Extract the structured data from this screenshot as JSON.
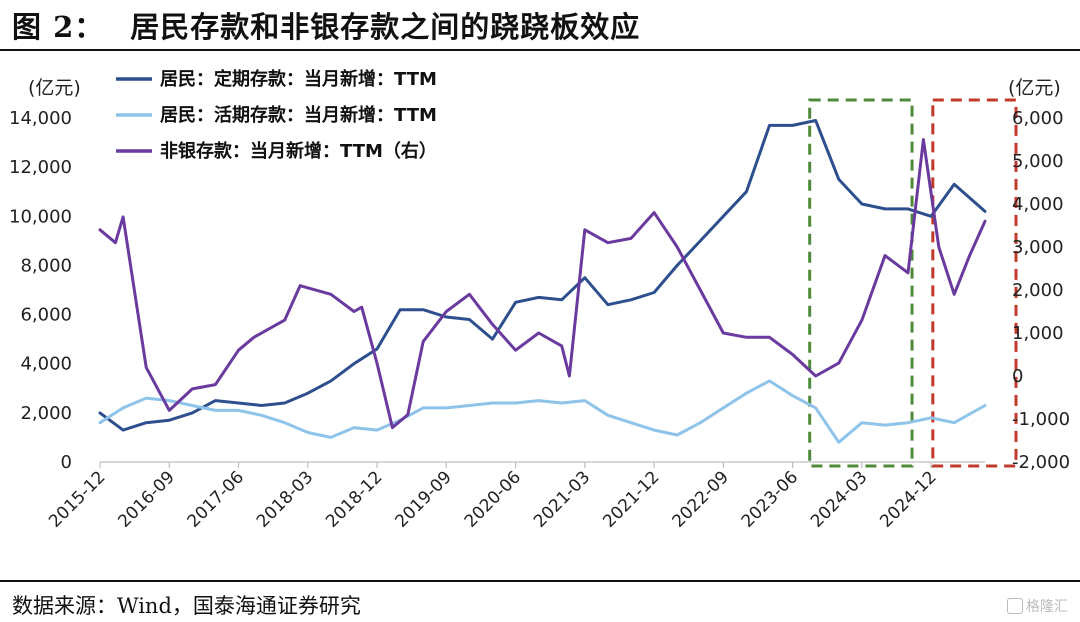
{
  "figure": {
    "label": "图 2：",
    "title": "居民存款和非银存款之间的跷跷板效应",
    "source": "数据来源：Wind，国泰海通证券研究",
    "watermark": "格隆汇"
  },
  "colors": {
    "fixed_deposit": "#2E4F8E",
    "demand_deposit": "#8EC3EA",
    "nonbank_deposit": "#6A3A9E",
    "green_box": "#4F8A3B",
    "red_box": "#C0392B"
  },
  "chart_data": {
    "type": "line",
    "left_unit": "(亿元)",
    "right_unit": "(亿元)",
    "ylim_left": [
      0,
      14000
    ],
    "ylim_right": [
      -2000,
      6000
    ],
    "yticks_left": [
      "0",
      "2,000",
      "4,000",
      "6,000",
      "8,000",
      "10,000",
      "12,000",
      "14,000"
    ],
    "yticks_right": [
      "-2,000",
      "-1,000",
      "0",
      "1,000",
      "2,000",
      "3,000",
      "4,000",
      "5,000",
      "6,000"
    ],
    "x_start": "2015-12",
    "x_end": "2025-07",
    "xticks": [
      "2015-12",
      "2016-09",
      "2017-06",
      "2018-03",
      "2018-12",
      "2019-09",
      "2020-06",
      "2021-03",
      "2021-12",
      "2022-09",
      "2023-06",
      "2024-03",
      "2024-12"
    ],
    "grid": false,
    "legend_position": "top-left",
    "series": [
      {
        "name": "居民：定期存款：当月新增：TTM",
        "axis": "left",
        "x": [
          "2015-12",
          "2016-03",
          "2016-06",
          "2016-09",
          "2016-12",
          "2017-03",
          "2017-06",
          "2017-09",
          "2017-12",
          "2018-03",
          "2018-06",
          "2018-09",
          "2018-12",
          "2019-03",
          "2019-06",
          "2019-09",
          "2019-12",
          "2020-03",
          "2020-06",
          "2020-09",
          "2020-12",
          "2021-03",
          "2021-06",
          "2021-09",
          "2021-12",
          "2022-03",
          "2022-06",
          "2022-09",
          "2022-12",
          "2023-03",
          "2023-06",
          "2023-09",
          "2023-12",
          "2024-03",
          "2024-06",
          "2024-09",
          "2024-12",
          "2025-03",
          "2025-07"
        ],
        "values": [
          2000,
          1300,
          1600,
          1700,
          2000,
          2500,
          2400,
          2300,
          2400,
          2800,
          3300,
          4000,
          4600,
          6200,
          6200,
          5900,
          5800,
          5000,
          6500,
          6700,
          6600,
          7500,
          6400,
          6600,
          6900,
          8000,
          9000,
          10000,
          11000,
          13700,
          13700,
          13900,
          11500,
          10500,
          10300,
          10300,
          10000,
          11300,
          10200
        ]
      },
      {
        "name": "居民：活期存款：当月新增：TTM",
        "axis": "left",
        "x": [
          "2015-12",
          "2016-03",
          "2016-06",
          "2016-09",
          "2016-12",
          "2017-03",
          "2017-06",
          "2017-09",
          "2017-12",
          "2018-03",
          "2018-06",
          "2018-09",
          "2018-12",
          "2019-03",
          "2019-06",
          "2019-09",
          "2019-12",
          "2020-03",
          "2020-06",
          "2020-09",
          "2020-12",
          "2021-03",
          "2021-06",
          "2021-09",
          "2021-12",
          "2022-03",
          "2022-06",
          "2022-09",
          "2022-12",
          "2023-03",
          "2023-06",
          "2023-09",
          "2023-12",
          "2024-03",
          "2024-06",
          "2024-09",
          "2024-12",
          "2025-03",
          "2025-07"
        ],
        "values": [
          1600,
          2200,
          2600,
          2500,
          2300,
          2100,
          2100,
          1900,
          1600,
          1200,
          1000,
          1400,
          1300,
          1700,
          2200,
          2200,
          2300,
          2400,
          2400,
          2500,
          2400,
          2500,
          1900,
          1600,
          1300,
          1100,
          1600,
          2200,
          2800,
          3300,
          2700,
          2200,
          800,
          1600,
          1500,
          1600,
          1800,
          1600,
          2300
        ]
      },
      {
        "name": "非银存款：当月新增：TTM（右）",
        "axis": "right",
        "x": [
          "2015-12",
          "2016-02",
          "2016-03",
          "2016-06",
          "2016-09",
          "2016-12",
          "2017-03",
          "2017-06",
          "2017-08",
          "2017-12",
          "2018-02",
          "2018-06",
          "2018-09",
          "2018-10",
          "2018-12",
          "2019-02",
          "2019-04",
          "2019-06",
          "2019-09",
          "2019-12",
          "2020-03",
          "2020-06",
          "2020-09",
          "2020-12",
          "2021-01",
          "2021-03",
          "2021-06",
          "2021-09",
          "2021-12",
          "2022-03",
          "2022-06",
          "2022-09",
          "2022-12",
          "2023-03",
          "2023-06",
          "2023-09",
          "2023-12",
          "2024-03",
          "2024-06",
          "2024-09",
          "2024-11",
          "2025-01",
          "2025-03",
          "2025-05",
          "2025-07"
        ],
        "values": [
          3400,
          3100,
          3700,
          200,
          -800,
          -300,
          -200,
          600,
          900,
          1300,
          2100,
          1900,
          1500,
          1600,
          300,
          -1200,
          -900,
          800,
          1500,
          1900,
          1200,
          600,
          1000,
          700,
          0,
          3400,
          3100,
          3200,
          3800,
          3000,
          2000,
          1000,
          900,
          900,
          500,
          0,
          300,
          1300,
          2800,
          2400,
          5500,
          3000,
          1900,
          2800,
          3600
        ]
      }
    ],
    "highlights": [
      {
        "color": "green",
        "x_from": "2023-09",
        "x_to": "2024-09"
      },
      {
        "color": "red",
        "x_from": "2025-01",
        "x_to": "2025-07"
      }
    ]
  }
}
